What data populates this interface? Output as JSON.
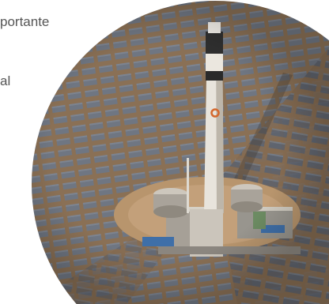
{
  "article": {
    "text_fragment_1": "portante",
    "text_fragment_2": "al"
  },
  "photo": {
    "subject": "solar-power-tower-with-heliostat-field",
    "colors": {
      "ground": "#8a7055",
      "mirror": "#6f7682",
      "mirror_dark": "#5c616b",
      "tower": "#e8e4dc",
      "tower_shadow": "#bdb6aa",
      "sand_ring": "#b8956d",
      "tank": "#a9a39a"
    }
  }
}
